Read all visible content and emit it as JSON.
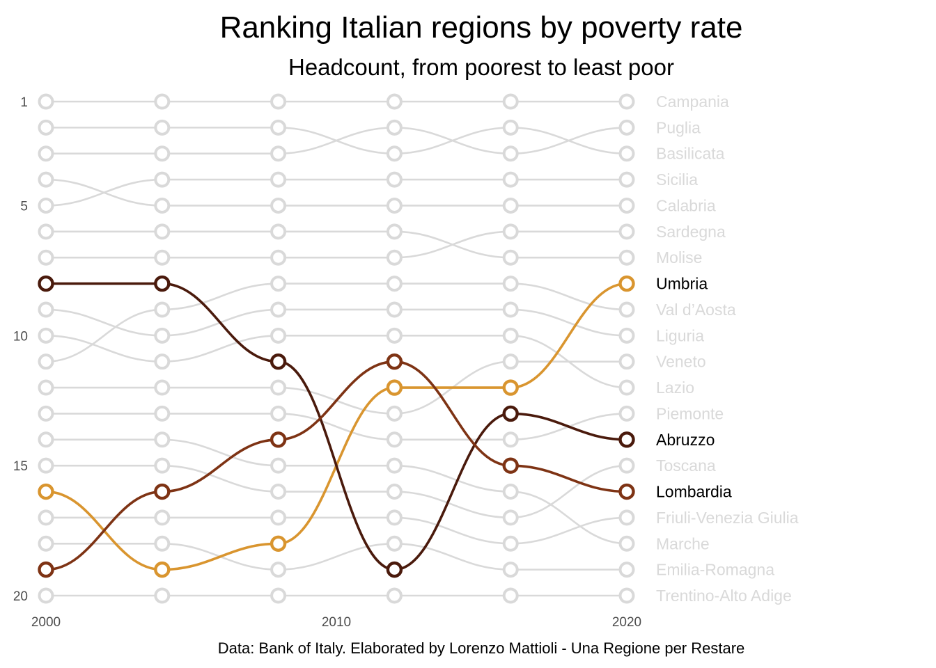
{
  "chart_data": {
    "type": "line",
    "title": "Ranking Italian regions by poverty rate",
    "subtitle": "Headcount, from poorest to least poor",
    "caption": "Data: Bank of Italy. Elaborated by Lorenzo Mattioli - Una Regione per Restare",
    "xlabel": "",
    "ylabel": "",
    "x": [
      2000,
      2004,
      2008,
      2012,
      2016,
      2020
    ],
    "xlim": [
      2000,
      2020
    ],
    "ylim": [
      1,
      20
    ],
    "y_reversed": true,
    "x_ticks": [
      2000,
      2010,
      2020
    ],
    "y_ticks": [
      1,
      5,
      10,
      15,
      20
    ],
    "grid": false,
    "legend": "direct labels at right",
    "highlight_colors": {
      "Umbria": "#D9952F",
      "Abruzzo": "#4A1A0C",
      "Lombardia": "#7E3314"
    },
    "background_color": "#D9D9D9",
    "series": [
      {
        "name": "Campania",
        "highlight": false,
        "values": [
          1,
          1,
          1,
          1,
          1,
          1
        ]
      },
      {
        "name": "Basilicata",
        "highlight": false,
        "values": [
          2,
          2,
          2,
          3,
          2,
          3
        ]
      },
      {
        "name": "Puglia",
        "highlight": false,
        "values": [
          3,
          3,
          3,
          2,
          3,
          2
        ]
      },
      {
        "name": "Sicilia",
        "highlight": false,
        "values": [
          5,
          4,
          4,
          4,
          4,
          4
        ]
      },
      {
        "name": "Calabria",
        "highlight": false,
        "values": [
          4,
          5,
          5,
          5,
          5,
          5
        ]
      },
      {
        "name": "Molise",
        "highlight": false,
        "values": [
          6,
          6,
          6,
          6,
          7,
          7
        ]
      },
      {
        "name": "Sardegna",
        "highlight": false,
        "values": [
          7,
          7,
          7,
          7,
          6,
          6
        ]
      },
      {
        "name": "Umbria",
        "highlight": true,
        "values": [
          16,
          19,
          18,
          12,
          12,
          8
        ]
      },
      {
        "name": "Val d’Aosta",
        "highlight": false,
        "values": [
          11,
          9,
          8,
          8,
          8,
          9
        ]
      },
      {
        "name": "Liguria",
        "highlight": false,
        "values": [
          9,
          10,
          9,
          9,
          9,
          10
        ]
      },
      {
        "name": "Lazio",
        "highlight": false,
        "values": [
          10,
          11,
          10,
          10,
          10,
          12
        ]
      },
      {
        "name": "Veneto",
        "highlight": false,
        "values": [
          12,
          12,
          12,
          13,
          11,
          11
        ]
      },
      {
        "name": "Piemonte",
        "highlight": false,
        "values": [
          13,
          13,
          13,
          14,
          14,
          13
        ]
      },
      {
        "name": "Abruzzo",
        "highlight": true,
        "values": [
          8,
          8,
          11,
          19,
          13,
          14
        ]
      },
      {
        "name": "Marche",
        "highlight": false,
        "values": [
          14,
          14,
          15,
          15,
          16,
          18
        ]
      },
      {
        "name": "Lombardia",
        "highlight": true,
        "values": [
          19,
          16,
          14,
          11,
          15,
          16
        ]
      },
      {
        "name": "Toscana",
        "highlight": false,
        "values": [
          15,
          15,
          16,
          16,
          17,
          15
        ]
      },
      {
        "name": "Friuli-Venezia Giulia",
        "highlight": false,
        "values": [
          17,
          17,
          17,
          17,
          18,
          17
        ]
      },
      {
        "name": "Trentino-Alto Adige",
        "highlight": false,
        "values": [
          20,
          20,
          20,
          20,
          20,
          20
        ]
      },
      {
        "name": "Emilia-Romagna",
        "highlight": false,
        "values": [
          18,
          18,
          19,
          18,
          19,
          19
        ]
      }
    ]
  }
}
